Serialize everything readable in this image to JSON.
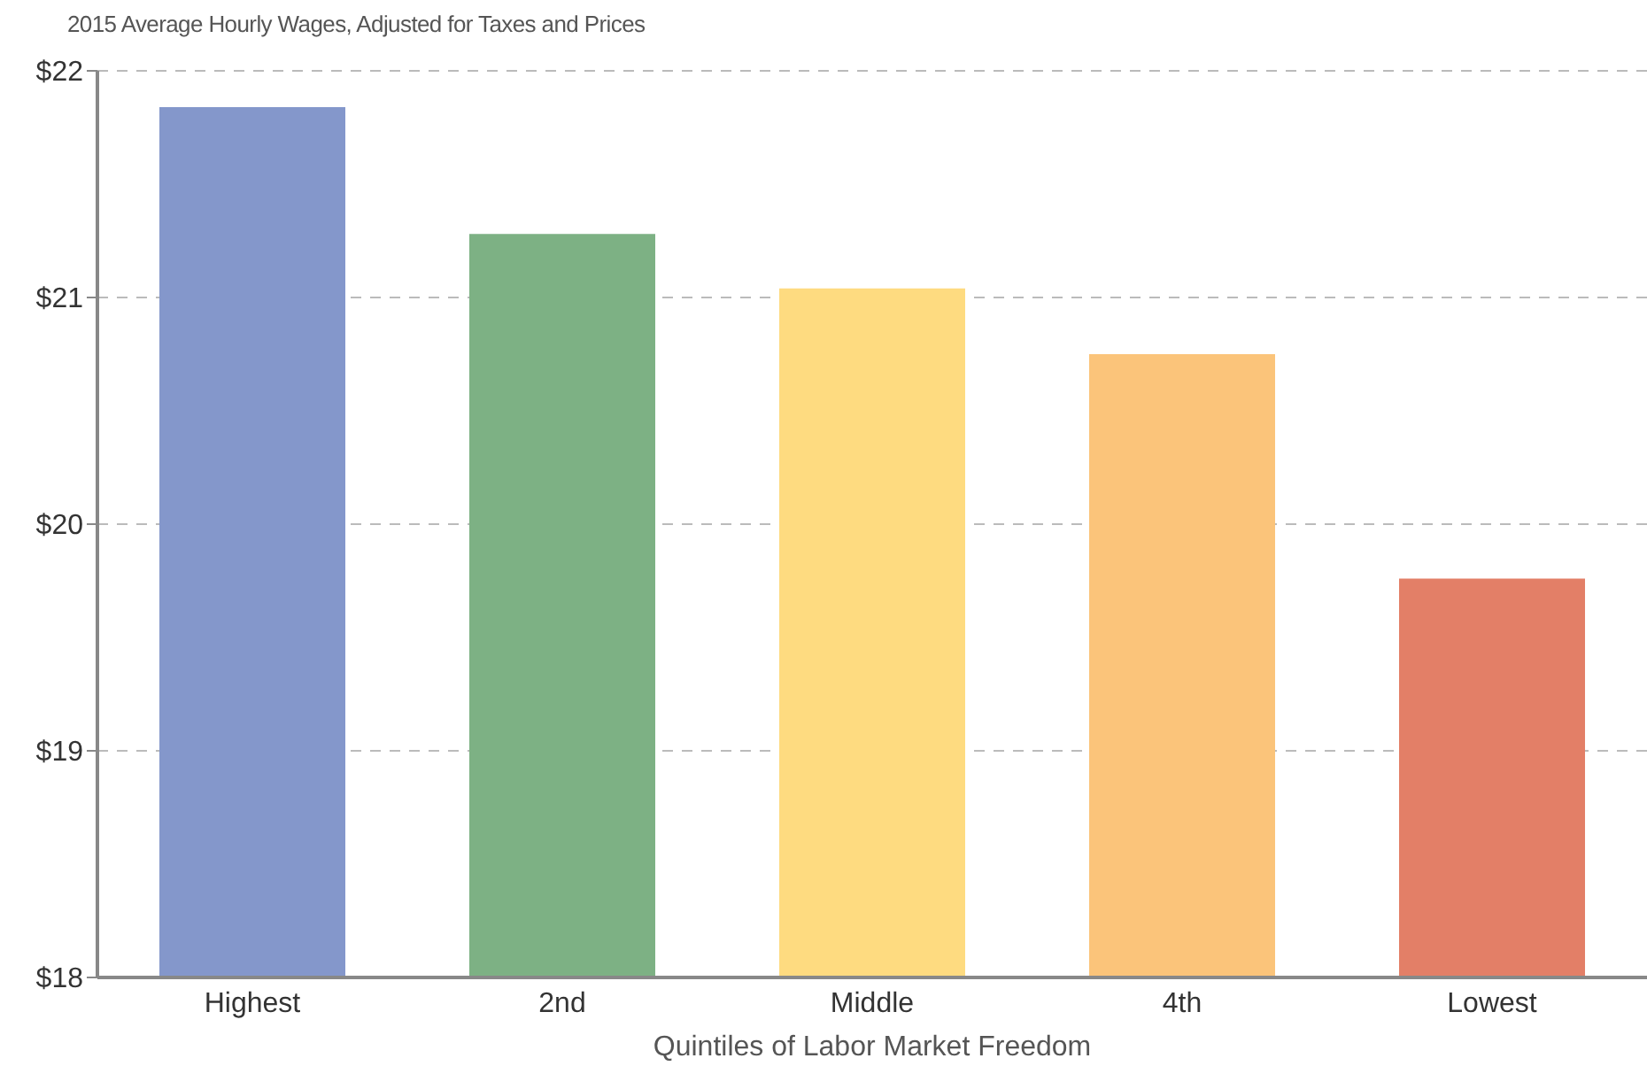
{
  "chart_data": {
    "type": "bar",
    "title": "2015 Average Hourly Wages, Adjusted for Taxes and Prices",
    "xlabel": "Quintiles of Labor Market Freedom",
    "categories": [
      "Highest",
      "2nd",
      "Middle",
      "4th",
      "Lowest"
    ],
    "values": [
      21.84,
      21.28,
      21.04,
      20.75,
      19.76
    ],
    "colors": [
      "#8497cb",
      "#7db184",
      "#fedb80",
      "#fbc47a",
      "#e37f67"
    ],
    "ylim": [
      18,
      22
    ],
    "yticks": [
      {
        "value": 18,
        "label": "$18"
      },
      {
        "value": 19,
        "label": "$19"
      },
      {
        "value": 20,
        "label": "$20"
      },
      {
        "value": 21,
        "label": "$21"
      },
      {
        "value": 22,
        "label": "$22"
      }
    ],
    "grid": "y"
  }
}
